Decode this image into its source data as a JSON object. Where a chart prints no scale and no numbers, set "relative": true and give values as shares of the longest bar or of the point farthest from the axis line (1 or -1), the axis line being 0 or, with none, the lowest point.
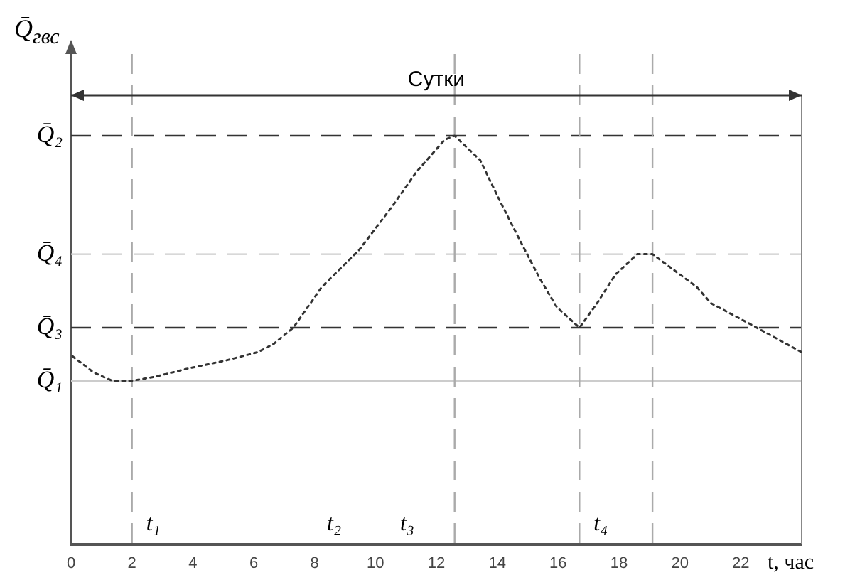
{
  "chart_data": {
    "type": "line",
    "relative": true,
    "ylabel": "Q̄$_{гвс}$",
    "xlabel": "t, час",
    "xlim": [
      0,
      24
    ],
    "xticks": [
      0,
      2,
      4,
      6,
      8,
      10,
      12,
      14,
      16,
      18,
      20,
      22
    ],
    "grid": false,
    "legend": false,
    "marker": "none",
    "line_style": "dotted",
    "series": [
      {
        "color": "#333333",
        "x": [
          0.05,
          0.75,
          1.36,
          2,
          2.76,
          3.84,
          5.1,
          6.13,
          6.65,
          7.3,
          8.24,
          9.46,
          10.58,
          11.33,
          12.27,
          12.6,
          13.44,
          14.09,
          14.84,
          15.4,
          15.96,
          16.7,
          17.28,
          17.88,
          18.6,
          19.1,
          20.55,
          21.02,
          22.28,
          24
        ],
        "values": [
          0.46,
          0.42,
          0.4,
          0.4,
          0.41,
          0.43,
          0.45,
          0.47,
          0.49,
          0.53,
          0.63,
          0.72,
          0.83,
          0.91,
          0.99,
          1,
          0.94,
          0.84,
          0.73,
          0.65,
          0.58,
          0.53,
          0.59,
          0.66,
          0.71,
          0.71,
          0.63,
          0.59,
          0.54,
          0.47
        ]
      }
    ],
    "ref_lines": [
      {
        "axis": "y",
        "value": 1,
        "label": "Q̄₂",
        "color": "#333333",
        "line_style": "dashed"
      },
      {
        "axis": "y",
        "value": 0.71,
        "label": "Q̄₄",
        "color": "#cccccc",
        "line_style": "dashed"
      },
      {
        "axis": "y",
        "value": 0.53,
        "label": "Q̄₃",
        "color": "#333333",
        "line_style": "dashed"
      },
      {
        "axis": "y",
        "value": 0.4,
        "label": "Q̄₁",
        "color": "#cccccc",
        "line_style": "solid"
      },
      {
        "axis": "x",
        "value": 2,
        "label": "t₁",
        "color": "#aaaaaa",
        "line_style": "dashed"
      },
      {
        "axis": "x",
        "value": 12.6,
        "color": "#aaaaaa",
        "line_style": "dashed"
      },
      {
        "axis": "x",
        "value": 16.7,
        "label": "t₄",
        "color": "#aaaaaa",
        "line_style": "dashed"
      },
      {
        "axis": "x",
        "value": 19.1,
        "color": "#aaaaaa",
        "line_style": "dashed"
      }
    ],
    "annotations": [
      "Сутки",
      "t₂",
      "t₃"
    ]
  }
}
